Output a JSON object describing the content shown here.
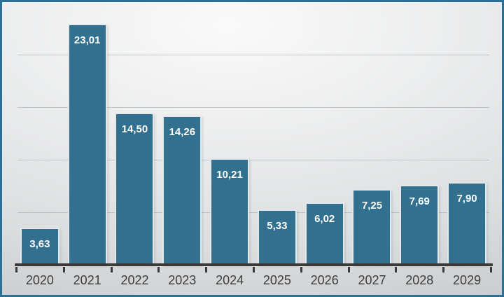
{
  "chart_data": {
    "type": "bar",
    "title": "",
    "xlabel": "",
    "ylabel": "",
    "categories": [
      "2020",
      "2021",
      "2022",
      "2023",
      "2024",
      "2025",
      "2026",
      "2027",
      "2028",
      "2029"
    ],
    "values": [
      3.63,
      23.01,
      14.5,
      14.26,
      10.21,
      5.33,
      6.02,
      7.25,
      7.69,
      7.9
    ],
    "labels_display": [
      "3,63",
      "23,01",
      "14,50",
      "14,26",
      "10,21",
      "5,33",
      "6,02",
      "7,25",
      "7,69",
      "7,90"
    ],
    "decimal_separator": ",",
    "ylim": [
      0,
      25
    ],
    "gridline_values": [
      5,
      10,
      15,
      20
    ],
    "grid": "horizontal",
    "legend_position": "none",
    "y_axis_labels_visible": false,
    "data_label_position": "inside-end",
    "colors": {
      "bar_fill": "#31708F",
      "bar_border": "#E4E8EA",
      "frame_border": "#2E6F96",
      "axis_line": "#3A3A3A",
      "gridline": "#A8ADB0",
      "value_text": "#FFFFFF",
      "axis_text": "#3D3D3D",
      "background_light": "#FAFAFA",
      "background_dark": "#C6C8CA"
    }
  }
}
